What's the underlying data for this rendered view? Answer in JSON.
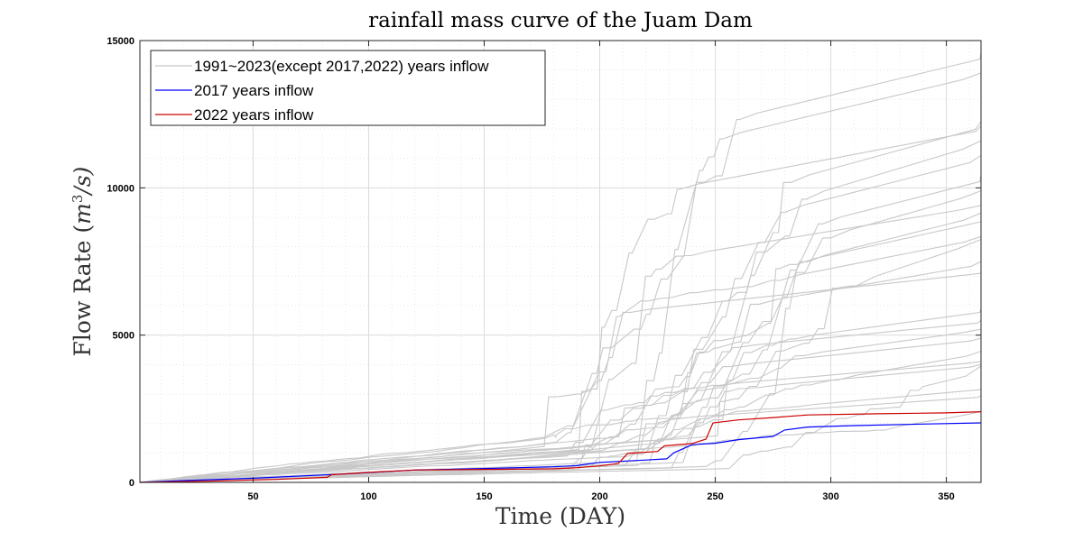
{
  "chart_data": {
    "type": "line",
    "title": "rainfall mass curve of the Juam Dam",
    "xlabel": "Time (DAY)",
    "ylabel_text": "Flow Rate (",
    "ylabel_math_base": "m",
    "ylabel_math_exp": "3",
    "ylabel_math_rest": "/s)",
    "xlim": [
      1,
      365
    ],
    "ylim": [
      0,
      15000
    ],
    "xticks": [
      50,
      100,
      150,
      200,
      250,
      300,
      350
    ],
    "yticks": [
      0,
      5000,
      10000,
      15000
    ],
    "grid": true,
    "minor_grid": true,
    "legend_position": "top-left",
    "legend": [
      {
        "label": "1991~2023(except 2017,2022) years inflow",
        "color": "#c8c8c8"
      },
      {
        "label": "2017 years inflow",
        "color": "#0000ff"
      },
      {
        "label": "2022 years inflow",
        "color": "#cc0000"
      }
    ],
    "series_2017": {
      "name": "2017 years inflow",
      "color": "#0000ff",
      "points": [
        [
          1,
          0
        ],
        [
          20,
          60
        ],
        [
          50,
          140
        ],
        [
          80,
          250
        ],
        [
          100,
          330
        ],
        [
          120,
          420
        ],
        [
          150,
          470
        ],
        [
          180,
          530
        ],
        [
          190,
          570
        ],
        [
          200,
          680
        ],
        [
          220,
          760
        ],
        [
          229,
          800
        ],
        [
          232,
          1000
        ],
        [
          240,
          1280
        ],
        [
          250,
          1330
        ],
        [
          260,
          1450
        ],
        [
          275,
          1560
        ],
        [
          280,
          1780
        ],
        [
          290,
          1880
        ],
        [
          310,
          1930
        ],
        [
          340,
          1980
        ],
        [
          365,
          2020
        ]
      ]
    },
    "series_2022": {
      "name": "2022 years inflow",
      "color": "#cc0000",
      "points": [
        [
          1,
          0
        ],
        [
          30,
          40
        ],
        [
          60,
          100
        ],
        [
          82,
          170
        ],
        [
          84,
          260
        ],
        [
          100,
          340
        ],
        [
          120,
          420
        ],
        [
          150,
          440
        ],
        [
          180,
          460
        ],
        [
          190,
          500
        ],
        [
          200,
          560
        ],
        [
          208,
          640
        ],
        [
          212,
          980
        ],
        [
          225,
          1050
        ],
        [
          228,
          1240
        ],
        [
          240,
          1320
        ],
        [
          246,
          1470
        ],
        [
          249,
          2020
        ],
        [
          260,
          2120
        ],
        [
          275,
          2200
        ],
        [
          290,
          2290
        ],
        [
          320,
          2330
        ],
        [
          350,
          2360
        ],
        [
          365,
          2400
        ]
      ]
    },
    "other_years_final_values": [
      14600,
      13900,
      12250,
      12100,
      11600,
      11100,
      10450,
      9900,
      9400,
      9150,
      8850,
      8350,
      8250,
      7500,
      7100,
      5900,
      5500,
      5200,
      4900,
      4450,
      4100,
      4000,
      3950,
      3150,
      2950,
      2400
    ],
    "other_years_jump_days": [
      196,
      224,
      210,
      186,
      230,
      206,
      240,
      253,
      190,
      232,
      218,
      200,
      257,
      214,
      185,
      245,
      198,
      226,
      205,
      238,
      193,
      217,
      262,
      204,
      188,
      248
    ]
  }
}
